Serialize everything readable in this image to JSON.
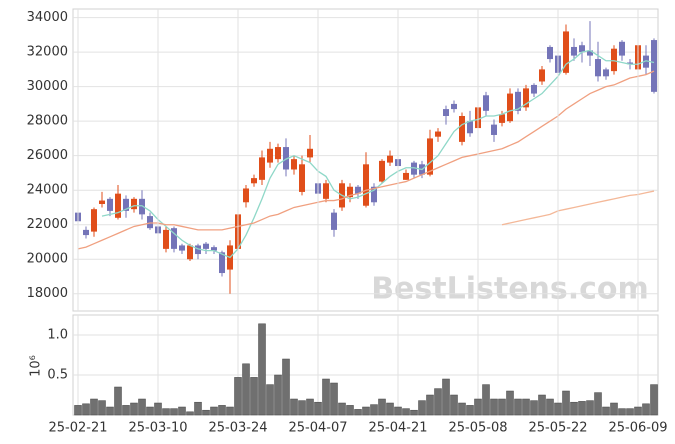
{
  "chart_data": [
    {
      "type": "candlestick",
      "watermark": "BestListens.com",
      "up_color": "#e04e1a",
      "down_color": "#7474b8",
      "ylim": [
        17000,
        34500
      ],
      "yticks": [
        18000,
        20000,
        22000,
        24000,
        26000,
        28000,
        30000,
        32000,
        34000
      ],
      "grid": true,
      "open": [
        22700,
        21700,
        21600,
        23200,
        23500,
        22400,
        23500,
        22900,
        23500,
        22500,
        21900,
        20600,
        21800,
        20800,
        20000,
        20800,
        20900,
        20700,
        20400,
        19400,
        20600,
        23300,
        24400,
        24600,
        25600,
        25800,
        26500,
        25200,
        23900,
        25900,
        24400,
        23500,
        22700,
        23000,
        23600,
        24200,
        23100,
        24200,
        24500,
        25600,
        25800,
        24600,
        25600,
        25500,
        24900,
        27100,
        28700,
        29000,
        26800,
        28000,
        27600,
        29500,
        27800,
        27900,
        28000,
        29700,
        28800,
        30100,
        30300,
        32300,
        31800,
        30800,
        32300,
        32400,
        32100,
        31600,
        31000,
        30900,
        32600,
        31400,
        31000,
        31800,
        32700
      ],
      "high": [
        22900,
        21900,
        23000,
        23900,
        23600,
        24300,
        23700,
        23600,
        24000,
        22700,
        21900,
        21900,
        21900,
        20900,
        20900,
        20900,
        21000,
        20800,
        20500,
        21100,
        22700,
        24300,
        24900,
        26300,
        26800,
        26700,
        27000,
        26000,
        26000,
        27200,
        24500,
        24600,
        22900,
        24600,
        24400,
        24300,
        26200,
        24400,
        25800,
        26300,
        26200,
        25200,
        25700,
        25700,
        27500,
        27600,
        28900,
        29200,
        28500,
        28600,
        29000,
        29700,
        28100,
        28600,
        29900,
        29900,
        30100,
        30200,
        31200,
        32400,
        32000,
        33600,
        32800,
        32600,
        33800,
        32600,
        31100,
        32400,
        32700,
        31600,
        32600,
        32400,
        32800
      ],
      "low": [
        22000,
        21200,
        21300,
        23000,
        22500,
        22300,
        22400,
        22700,
        22300,
        21700,
        21200,
        20400,
        20400,
        20300,
        19900,
        20000,
        20300,
        20300,
        19000,
        18000,
        20300,
        23000,
        24200,
        24300,
        25300,
        25600,
        24800,
        24900,
        23700,
        25600,
        23500,
        23300,
        21300,
        22800,
        23300,
        23500,
        23000,
        23100,
        24400,
        25400,
        25200,
        24600,
        24700,
        24700,
        24800,
        26800,
        27800,
        28500,
        26600,
        27100,
        27400,
        28300,
        26800,
        27700,
        27900,
        28400,
        28600,
        29400,
        30100,
        31400,
        30600,
        30700,
        31500,
        31400,
        31200,
        30300,
        30400,
        30700,
        31500,
        31000,
        30800,
        30700,
        29600
      ],
      "close": [
        22200,
        21400,
        22900,
        23400,
        22800,
        23800,
        22800,
        23500,
        22600,
        21800,
        21500,
        21700,
        20600,
        20500,
        20800,
        20300,
        20600,
        20500,
        19200,
        20800,
        22600,
        24100,
        24700,
        25900,
        26400,
        26500,
        25200,
        25800,
        25500,
        26400,
        23800,
        24400,
        21700,
        24400,
        24200,
        23800,
        25500,
        23300,
        25700,
        26000,
        25400,
        25000,
        24900,
        24900,
        27000,
        27400,
        28300,
        28700,
        28300,
        27300,
        28800,
        28600,
        27200,
        28400,
        29600,
        28600,
        29900,
        29600,
        31000,
        31600,
        30800,
        33200,
        31800,
        32000,
        31800,
        30600,
        30600,
        32200,
        31800,
        31300,
        32400,
        31100,
        29700
      ],
      "lines": [
        {
          "color": "#8fd8c8",
          "values": [
            null,
            null,
            null,
            22500,
            22600,
            22700,
            22900,
            23100,
            23100,
            22800,
            22300,
            21900,
            21500,
            21100,
            20800,
            20600,
            20500,
            20500,
            20300,
            20100,
            20600,
            21400,
            22400,
            23500,
            24700,
            25500,
            25800,
            26000,
            25800,
            25600,
            25100,
            24800,
            24000,
            23700,
            23500,
            23600,
            23800,
            24000,
            24400,
            24800,
            25100,
            25300,
            25300,
            25200,
            25600,
            26000,
            26700,
            27400,
            27800,
            28000,
            28100,
            28300,
            28300,
            28400,
            28600,
            28700,
            29000,
            29300,
            29600,
            30100,
            30600,
            31300,
            31600,
            32000,
            32100,
            31800,
            31500,
            31500,
            31400,
            31300,
            31300,
            31500,
            31400
          ]
        },
        {
          "color": "#f0a080",
          "values": [
            20600,
            20700,
            20900,
            21100,
            21300,
            21500,
            21700,
            21900,
            22000,
            22100,
            22100,
            22000,
            22000,
            21900,
            21800,
            21700,
            21700,
            21700,
            21700,
            21800,
            21900,
            22000,
            22100,
            22300,
            22500,
            22600,
            22800,
            23000,
            23100,
            23200,
            23300,
            23400,
            23400,
            23500,
            23700,
            23800,
            24000,
            24100,
            24200,
            24300,
            24400,
            24500,
            24700,
            24900,
            25100,
            25300,
            25500,
            25700,
            25900,
            26000,
            26100,
            26200,
            26300,
            26400,
            26600,
            26800,
            27100,
            27400,
            27700,
            28000,
            28300,
            28700,
            29000,
            29300,
            29600,
            29800,
            30000,
            30100,
            30300,
            30500,
            30600,
            30700,
            30900
          ]
        },
        {
          "color": "#f4b898",
          "values": [
            null,
            null,
            null,
            null,
            null,
            null,
            null,
            null,
            null,
            null,
            null,
            null,
            null,
            null,
            null,
            null,
            null,
            null,
            null,
            null,
            null,
            null,
            null,
            null,
            null,
            null,
            null,
            null,
            null,
            null,
            null,
            null,
            null,
            null,
            null,
            null,
            null,
            null,
            null,
            null,
            null,
            null,
            null,
            null,
            null,
            null,
            null,
            null,
            null,
            null,
            null,
            null,
            null,
            22000,
            22100,
            22200,
            22300,
            22400,
            22500,
            22600,
            22800,
            22900,
            23000,
            23100,
            23200,
            23300,
            23400,
            23500,
            23600,
            23700,
            23750,
            23850,
            23950
          ]
        }
      ]
    },
    {
      "type": "bar",
      "y_multiplier": "10⁶",
      "color": "#707070",
      "ylim": [
        0,
        1.25
      ],
      "yticks": [
        0.5,
        {
          "value": 1,
          "label": "1.0"
        }
      ],
      "grid": true,
      "categories": [
        "25-02-21",
        null,
        null,
        null,
        null,
        null,
        null,
        null,
        null,
        null,
        "25-03-10",
        null,
        null,
        null,
        null,
        null,
        null,
        null,
        null,
        null,
        "25-03-24",
        null,
        null,
        null,
        null,
        null,
        null,
        null,
        null,
        null,
        "25-04-07",
        null,
        null,
        null,
        null,
        null,
        null,
        null,
        null,
        null,
        "25-04-21",
        null,
        null,
        null,
        null,
        null,
        null,
        null,
        null,
        null,
        "25-05-08",
        null,
        null,
        null,
        null,
        null,
        null,
        null,
        null,
        null,
        "25-05-22",
        null,
        null,
        null,
        null,
        null,
        null,
        null,
        null,
        null,
        "25-06-09",
        null,
        null
      ],
      "values": [
        0.12,
        0.14,
        0.2,
        0.18,
        0.1,
        0.35,
        0.12,
        0.15,
        0.2,
        0.1,
        0.15,
        0.08,
        0.08,
        0.1,
        0.04,
        0.16,
        0.06,
        0.1,
        0.12,
        0.1,
        0.47,
        0.64,
        0.47,
        1.14,
        0.38,
        0.5,
        0.7,
        0.2,
        0.18,
        0.2,
        0.16,
        0.45,
        0.4,
        0.15,
        0.12,
        0.07,
        0.1,
        0.13,
        0.2,
        0.15,
        0.1,
        0.08,
        0.06,
        0.18,
        0.25,
        0.33,
        0.45,
        0.25,
        0.15,
        0.12,
        0.2,
        0.38,
        0.2,
        0.2,
        0.3,
        0.2,
        0.2,
        0.18,
        0.25,
        0.2,
        0.15,
        0.3,
        0.16,
        0.17,
        0.18,
        0.28,
        0.1,
        0.15,
        0.08,
        0.08,
        0.1,
        0.14,
        0.38
      ]
    }
  ]
}
